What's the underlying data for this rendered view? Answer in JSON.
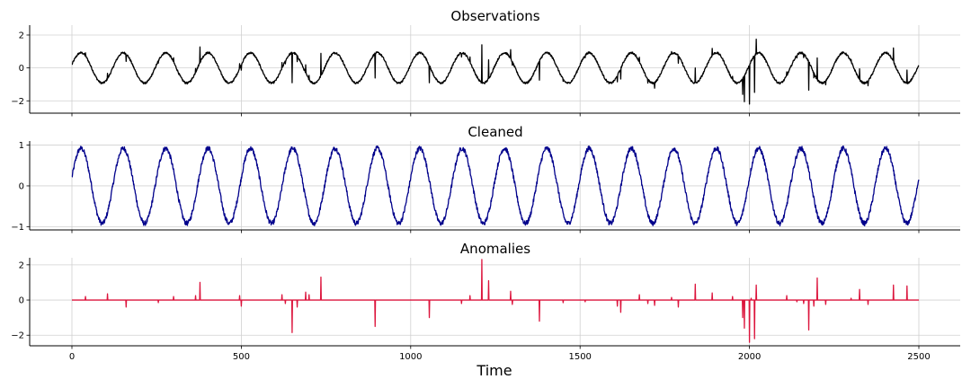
{
  "chart_data": {
    "type": "line",
    "xlabel": "Time",
    "x_range": [
      0,
      2500
    ],
    "x_ticks": [
      0,
      500,
      1000,
      1500,
      2000,
      2500
    ],
    "grid": true,
    "signal": {
      "period": 125,
      "noise": 0.06
    },
    "panels": [
      {
        "title": "Observations",
        "color": "#000000",
        "ylim": [
          -2.75,
          2.6
        ],
        "yticks": [
          -2,
          0,
          2
        ],
        "series": "observations"
      },
      {
        "title": "Cleaned",
        "color": "#00008b",
        "ylim": [
          -1.08,
          1.1
        ],
        "yticks": [
          -1,
          0,
          1
        ],
        "series": "cleaned"
      },
      {
        "title": "Anomalies",
        "color": "#dc143c",
        "ylim": [
          -2.6,
          2.4
        ],
        "yticks": [
          -2,
          0,
          2
        ],
        "series": "anomalies"
      }
    ],
    "anomalies": [
      [
        40,
        0.2
      ],
      [
        105,
        0.35
      ],
      [
        160,
        -0.4
      ],
      [
        255,
        -0.15
      ],
      [
        300,
        0.2
      ],
      [
        365,
        0.25
      ],
      [
        378,
        1.0
      ],
      [
        495,
        0.25
      ],
      [
        500,
        -0.35
      ],
      [
        620,
        0.3
      ],
      [
        630,
        -0.2
      ],
      [
        650,
        -1.85
      ],
      [
        665,
        -0.4
      ],
      [
        690,
        0.45
      ],
      [
        700,
        0.3
      ],
      [
        735,
        1.3
      ],
      [
        895,
        -1.5
      ],
      [
        1055,
        -1.0
      ],
      [
        1150,
        -0.2
      ],
      [
        1175,
        0.25
      ],
      [
        1210,
        2.3
      ],
      [
        1230,
        1.1
      ],
      [
        1295,
        0.5
      ],
      [
        1300,
        -0.25
      ],
      [
        1380,
        -1.2
      ],
      [
        1450,
        -0.15
      ],
      [
        1515,
        -0.1
      ],
      [
        1610,
        -0.35
      ],
      [
        1620,
        -0.7
      ],
      [
        1675,
        0.3
      ],
      [
        1700,
        -0.2
      ],
      [
        1720,
        -0.3
      ],
      [
        1770,
        0.15
      ],
      [
        1790,
        -0.4
      ],
      [
        1840,
        0.9
      ],
      [
        1890,
        0.4
      ],
      [
        1950,
        0.2
      ],
      [
        1980,
        -1.0
      ],
      [
        1985,
        -1.6
      ],
      [
        2000,
        -2.4
      ],
      [
        2005,
        0.1
      ],
      [
        2015,
        -2.2
      ],
      [
        2020,
        0.85
      ],
      [
        2110,
        0.25
      ],
      [
        2140,
        -0.1
      ],
      [
        2160,
        -0.2
      ],
      [
        2175,
        -1.7
      ],
      [
        2190,
        -0.35
      ],
      [
        2200,
        1.25
      ],
      [
        2225,
        -0.25
      ],
      [
        2300,
        0.1
      ],
      [
        2325,
        0.6
      ],
      [
        2350,
        -0.25
      ],
      [
        2425,
        0.85
      ],
      [
        2465,
        0.8
      ]
    ]
  }
}
